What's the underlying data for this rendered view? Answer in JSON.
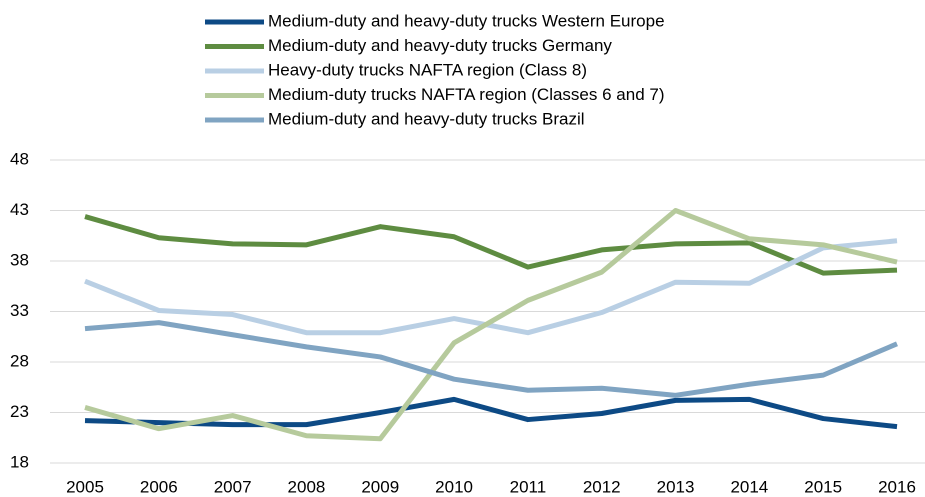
{
  "chart_data": {
    "type": "line",
    "categories": [
      "2005",
      "2006",
      "2007",
      "2008",
      "2009",
      "2010",
      "2011",
      "2012",
      "2013",
      "2014",
      "2015",
      "2016"
    ],
    "series": [
      {
        "name": "Medium-duty and heavy-duty trucks Western Europe",
        "color": "#0d4a85",
        "values": [
          22.2,
          22.0,
          21.8,
          21.8,
          23.0,
          24.3,
          22.3,
          22.9,
          24.2,
          24.3,
          22.4,
          21.6
        ]
      },
      {
        "name": "Medium-duty and heavy-duty trucks Germany",
        "color": "#5e8c41",
        "values": [
          42.4,
          40.3,
          39.7,
          39.6,
          41.4,
          40.4,
          37.4,
          39.1,
          39.7,
          39.8,
          36.8,
          37.1
        ]
      },
      {
        "name": "Heavy-duty trucks NAFTA region (Class 8)",
        "color": "#b9cfe4",
        "values": [
          36.0,
          33.1,
          32.7,
          30.9,
          30.9,
          32.3,
          30.9,
          32.9,
          35.9,
          35.8,
          39.3,
          40.0
        ]
      },
      {
        "name": "Medium-duty trucks NAFTA region (Classes 6 and 7)",
        "color": "#b6ca9c",
        "values": [
          23.5,
          21.4,
          22.7,
          20.7,
          20.4,
          29.9,
          34.1,
          36.9,
          43.0,
          40.2,
          39.6,
          37.9
        ]
      },
      {
        "name": "Medium-duty and heavy-duty trucks Brazil",
        "color": "#80a4c2",
        "values": [
          31.3,
          31.9,
          30.7,
          29.5,
          28.5,
          26.3,
          25.2,
          25.4,
          24.7,
          25.8,
          26.7,
          29.8
        ]
      }
    ],
    "ylim": [
      18,
      48
    ],
    "yticks": [
      18,
      23,
      28,
      33,
      38,
      43,
      48
    ],
    "grid": true,
    "legend": "top"
  }
}
